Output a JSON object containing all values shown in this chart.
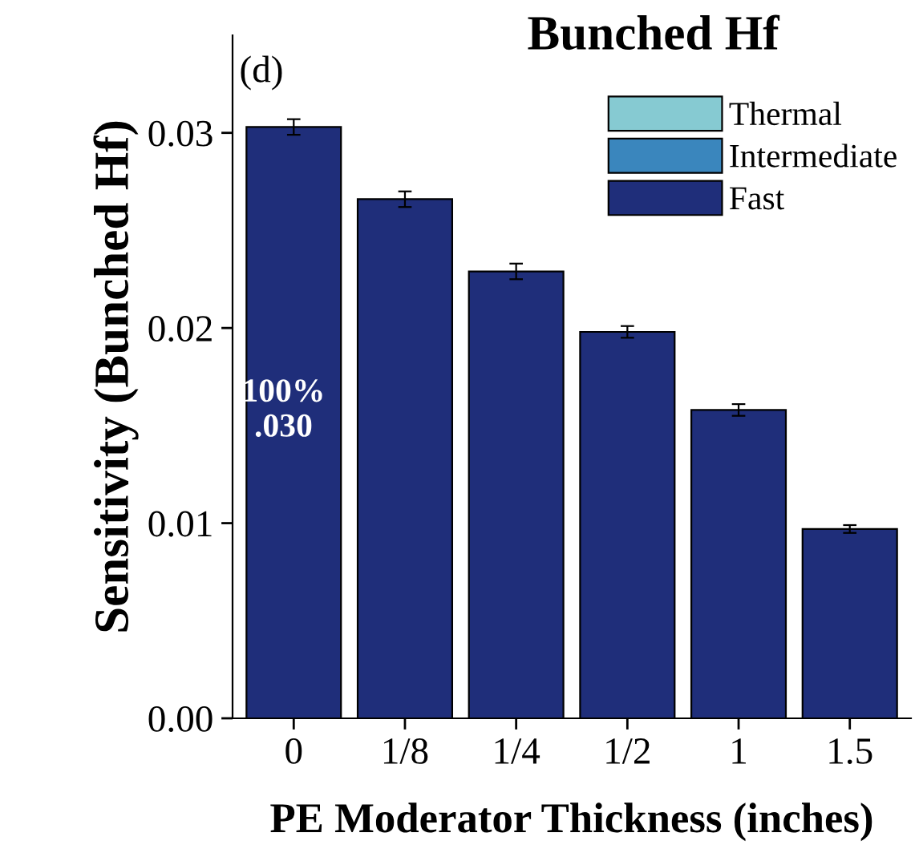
{
  "chart_data": {
    "type": "bar",
    "title": "Bunched Hf",
    "xlabel": "PE Moderator Thickness (inches)",
    "ylabel": "Sensitivity (Bunched Hf)",
    "categories": [
      "0",
      "1/8",
      "1/4",
      "1/2",
      "1",
      "1.5"
    ],
    "series": [
      {
        "name": "Thermal",
        "color": "#86cad2",
        "values": [
          null,
          null,
          null,
          null,
          null,
          null
        ]
      },
      {
        "name": "Intermediate",
        "color": "#3a86bd",
        "values": [
          null,
          null,
          null,
          null,
          null,
          null
        ]
      },
      {
        "name": "Fast",
        "color": "#1f2e7a",
        "values": [
          0.0303,
          0.0266,
          0.0229,
          0.0198,
          0.0158,
          0.0097
        ],
        "errors": [
          0.0004,
          0.0004,
          0.0004,
          0.0003,
          0.0003,
          0.0002
        ]
      }
    ],
    "ylim": [
      0,
      0.035
    ],
    "yticks": [
      {
        "value": 0,
        "label": "0.00"
      },
      0.01,
      0.02,
      0.03
    ],
    "legend": "top right",
    "grid": false,
    "annotations": [
      "(d)",
      "100%\n.030"
    ]
  }
}
